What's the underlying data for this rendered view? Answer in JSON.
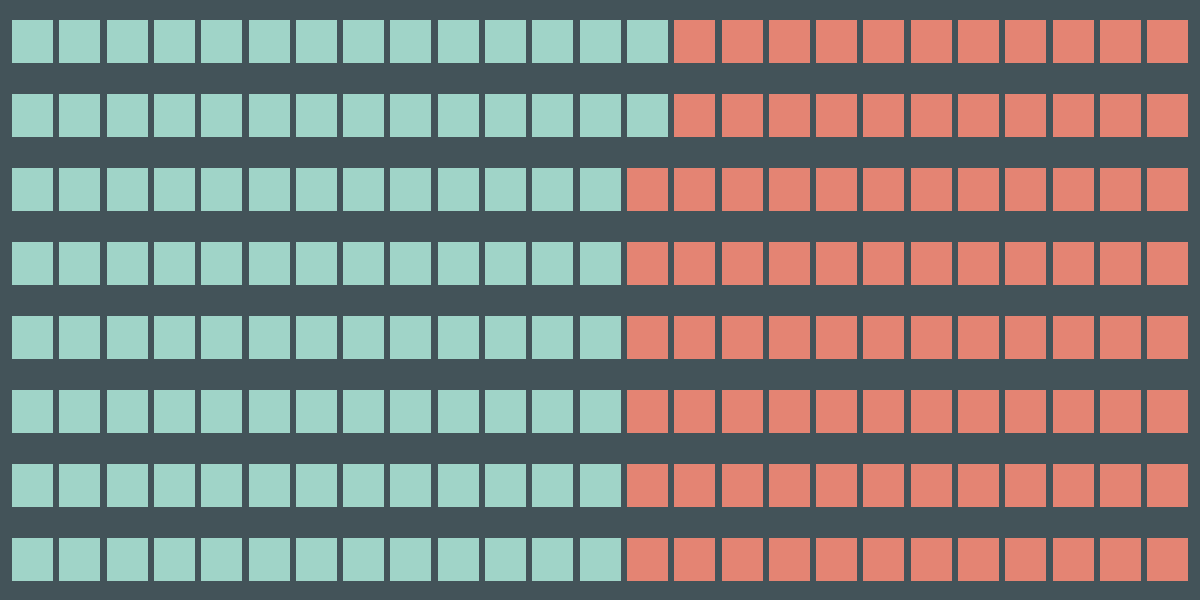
{
  "colors": {
    "background": "#435359",
    "category_a": "#a0d4c8",
    "category_b": "#e48473"
  },
  "chart_data": {
    "type": "waffle",
    "title": "",
    "columns": 25,
    "legend": "none",
    "series": [
      {
        "color": "#a0d4c8"
      },
      {
        "color": "#e48473"
      }
    ],
    "rows": [
      {
        "a": 14,
        "b": 11
      },
      {
        "a": 14,
        "b": 11
      },
      {
        "a": 13,
        "b": 12
      },
      {
        "a": 13,
        "b": 12
      },
      {
        "a": 13,
        "b": 12
      },
      {
        "a": 13,
        "b": 12
      },
      {
        "a": 13,
        "b": 12
      },
      {
        "a": 13,
        "b": 12
      }
    ]
  }
}
